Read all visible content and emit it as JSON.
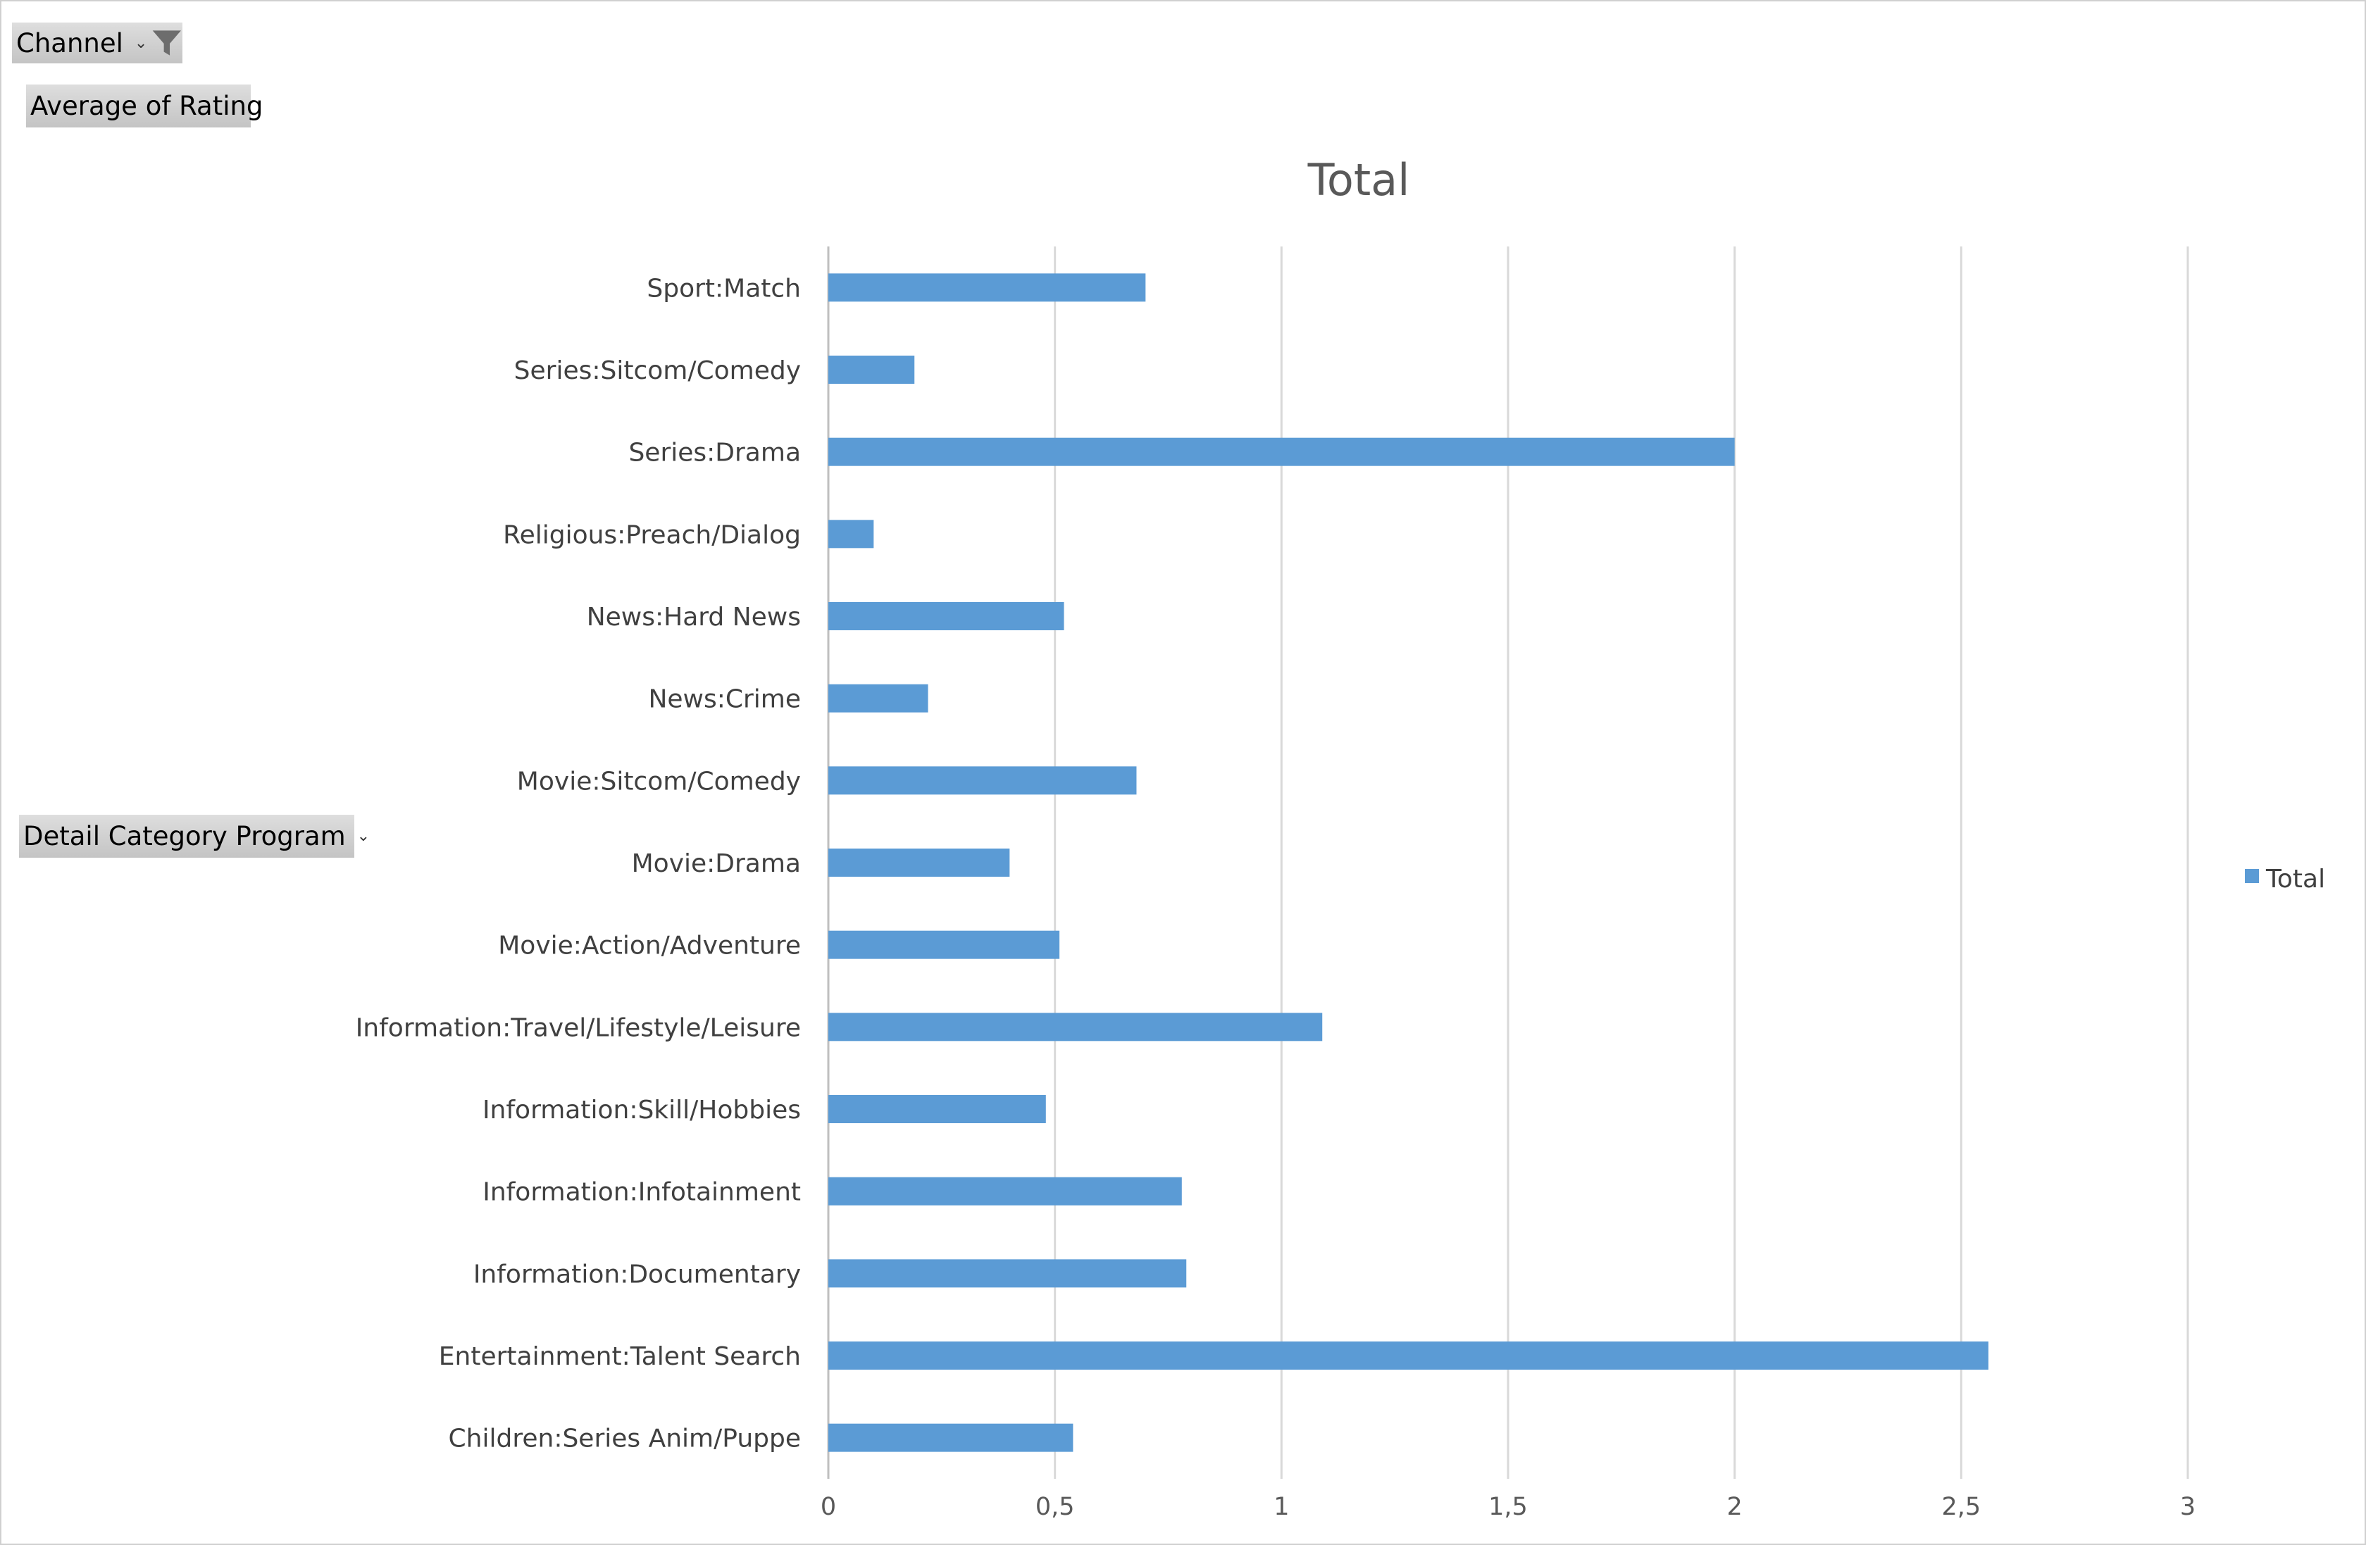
{
  "pivot_fields": {
    "filter_label": "Channel",
    "values_label": "Average of Rating",
    "rows_label": "Detail Category Program"
  },
  "icons": {
    "filter": "funnel-filter-icon",
    "dropdown": "chevron-down-icon"
  },
  "colors": {
    "bar": "#5b9bd5",
    "grid": "#d9d9d9",
    "text": "#404040"
  },
  "chart_data": {
    "type": "bar",
    "orientation": "horizontal",
    "title": "Total",
    "categories": [
      "Sport:Match",
      "Series:Sitcom/Comedy",
      "Series:Drama",
      "Religious:Preach/Dialog",
      "News:Hard News",
      "News:Crime",
      "Movie:Sitcom/Comedy",
      "Movie:Drama",
      "Movie:Action/Adventure",
      "Information:Travel/Lifestyle/Leisure",
      "Information:Skill/Hobbies",
      "Information:Infotainment",
      "Information:Documentary",
      "Entertainment:Talent Search",
      "Children:Series Anim/Puppe"
    ],
    "series": [
      {
        "name": "Total",
        "values": [
          0.7,
          0.19,
          2.0,
          0.1,
          0.52,
          0.22,
          0.68,
          0.4,
          0.51,
          1.09,
          0.48,
          0.78,
          0.79,
          2.56,
          0.54
        ]
      }
    ],
    "xlim": [
      0,
      3
    ],
    "x_ticks": [
      "0",
      "0,5",
      "1",
      "1,5",
      "2",
      "2,5",
      "3"
    ],
    "grid": true,
    "legend": "right"
  }
}
